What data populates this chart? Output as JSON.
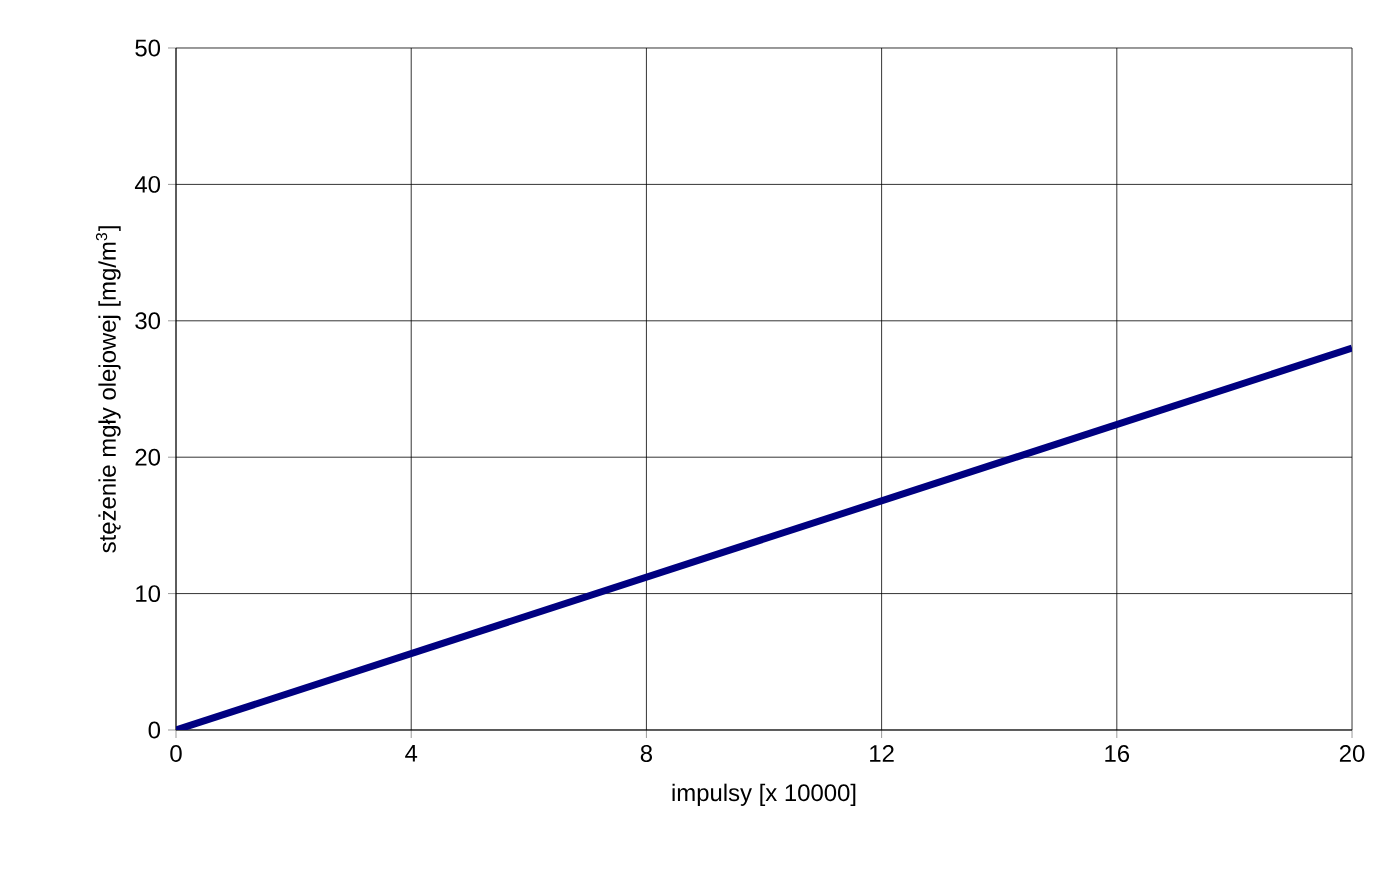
{
  "chart_data": {
    "type": "line",
    "xlabel": "impulsy [x 10000]",
    "ylabel": "stężenie mgły olejowej [mg/m$^{3}$]",
    "x": [
      0,
      20
    ],
    "series": [
      {
        "color": "#000080",
        "values": [
          0,
          28
        ]
      }
    ],
    "xlim": [
      0,
      20
    ],
    "ylim": [
      0,
      50
    ],
    "xticks": [
      0,
      4,
      8,
      12,
      16,
      20
    ],
    "yticks": [
      0,
      10,
      20,
      30,
      40,
      50
    ],
    "grid": true,
    "marker": "none",
    "line_style": "solid"
  }
}
